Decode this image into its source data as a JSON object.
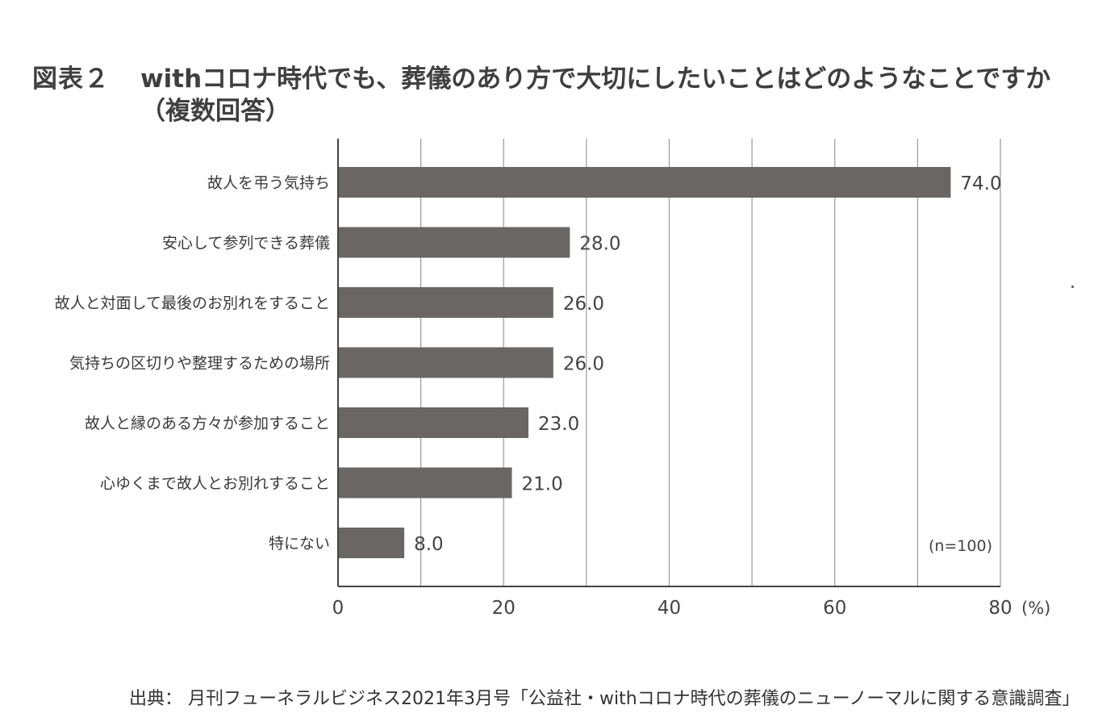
{
  "figure": {
    "label": "図表２",
    "title_line1": "withコロナ時代でも、葬儀のあり方で大切にしたいことはどのようなことですか",
    "title_line2": "（複数回答）"
  },
  "chart_data": {
    "type": "bar",
    "orientation": "horizontal",
    "categories": [
      "故人を弔う気持ち",
      "安心して参列できる葬儀",
      "故人と対面して最後のお別れをすること",
      "気持ちの区切りや整理するための場所",
      "故人と縁のある方々が参加すること",
      "心ゆくまで故人とお別れすること",
      "特にない"
    ],
    "values": [
      74.0,
      28.0,
      26.0,
      26.0,
      23.0,
      21.0,
      8.0
    ],
    "value_labels": [
      "74.0",
      "28.0",
      "26.0",
      "26.0",
      "23.0",
      "21.0",
      "8.0"
    ],
    "xlim": [
      0,
      80
    ],
    "x_ticks": [
      0,
      20,
      40,
      60,
      80
    ],
    "x_tick_labels": [
      "0",
      "20",
      "40",
      "60",
      "80"
    ],
    "x_unit": "(%)",
    "gridlines": [
      10,
      20,
      30,
      40,
      50,
      60,
      70,
      80
    ],
    "annotation": "(n=100)",
    "bar_color": "#6a6666",
    "grid_color": "#9a9a9a"
  },
  "source": "出典： 月刊フューネラルビジネス2021年3月号「公益社・withコロナ時代の葬儀のニューノーマルに関する意識調査」"
}
